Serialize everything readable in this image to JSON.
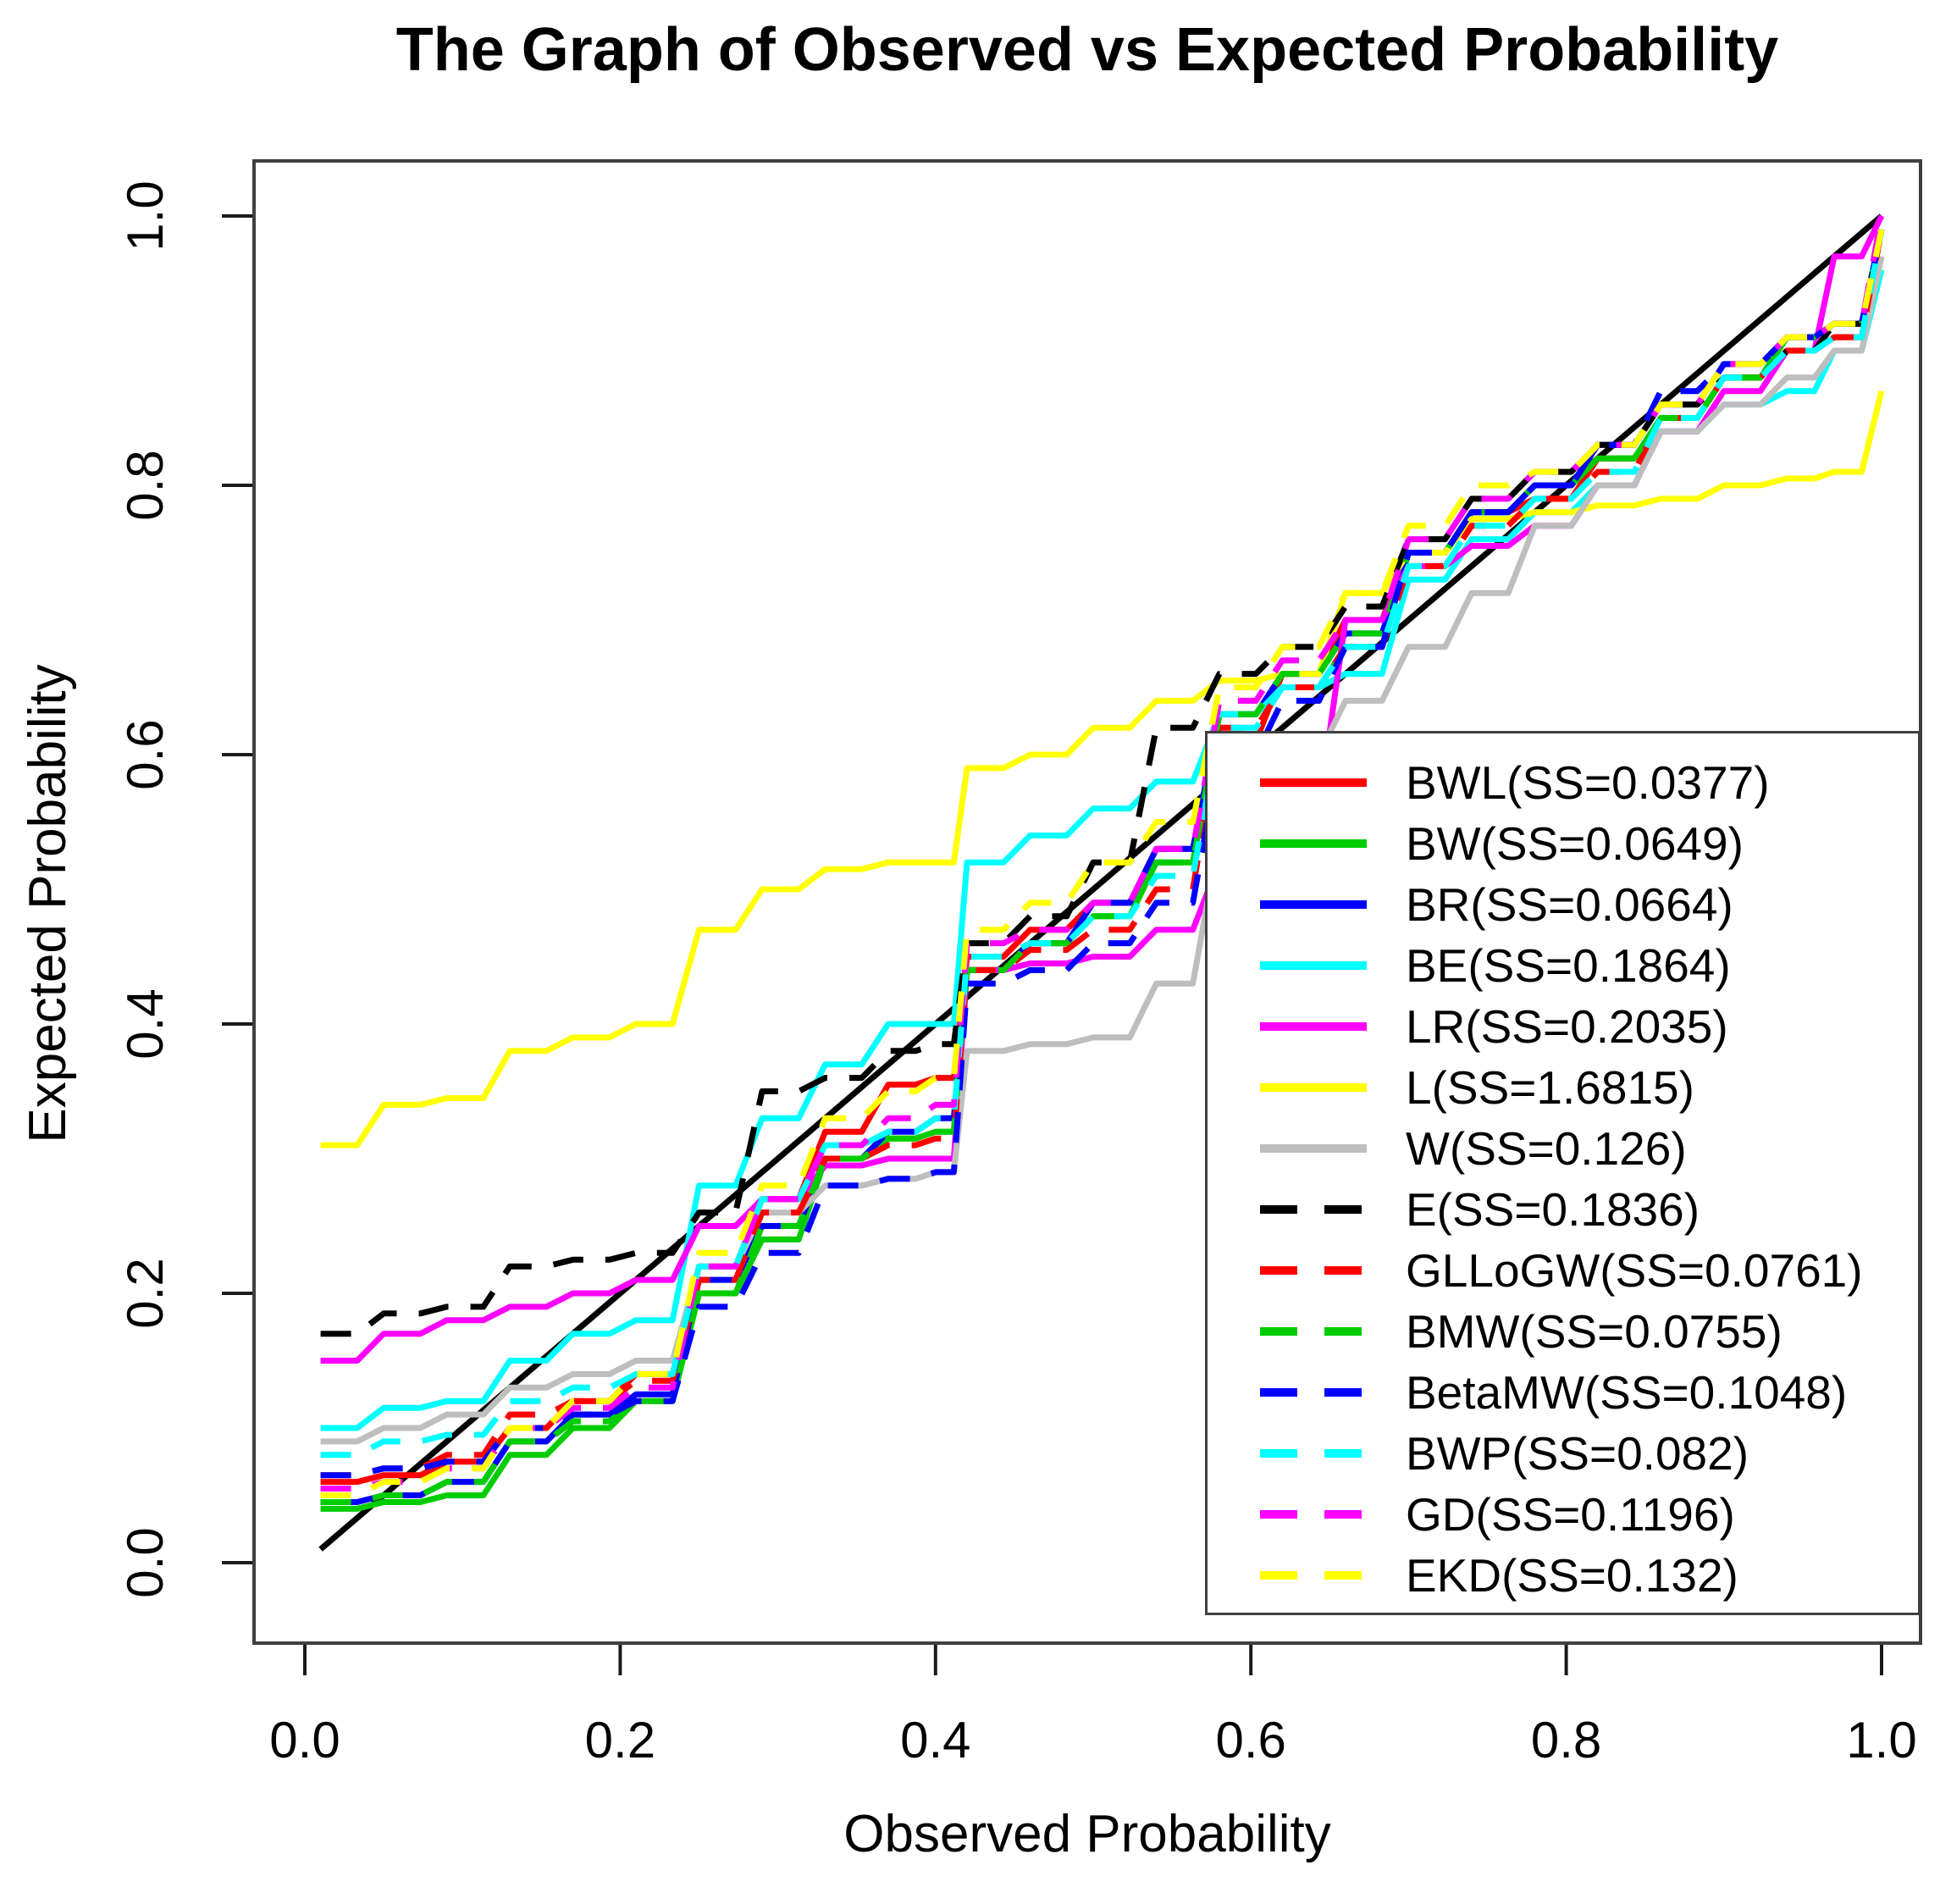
{
  "title": "The Graph of Observed vs Expected Probability",
  "chart_data": {
    "type": "line",
    "title": "The Graph of Observed vs Expected Probability",
    "xlabel": "Observed Probability",
    "ylabel": "Expected Probability",
    "xlim": [
      0,
      1
    ],
    "ylim": [
      0,
      1
    ],
    "grid": false,
    "legend_position": "bottom-right",
    "x_ticks": [
      "0.0",
      "0.2",
      "0.4",
      "0.6",
      "0.8",
      "1.0"
    ],
    "y_ticks": [
      "0.0",
      "0.2",
      "0.4",
      "0.6",
      "0.8",
      "1.0"
    ],
    "x": [
      0.01,
      0.05,
      0.09,
      0.13,
      0.17,
      0.21,
      0.25,
      0.29,
      0.33,
      0.37,
      0.4,
      0.42,
      0.46,
      0.5,
      0.54,
      0.58,
      0.62,
      0.66,
      0.7,
      0.74,
      0.78,
      0.82,
      0.86,
      0.9,
      0.94,
      0.97,
      1.0
    ],
    "series": [
      {
        "name": "reference",
        "label": "",
        "color": "#000000",
        "dashed": false,
        "step": false,
        "in_legend": false,
        "y": [
          0.01,
          0.05,
          0.09,
          0.13,
          0.17,
          0.21,
          0.25,
          0.29,
          0.33,
          0.37,
          0.4,
          0.42,
          0.46,
          0.5,
          0.54,
          0.58,
          0.62,
          0.66,
          0.7,
          0.74,
          0.78,
          0.82,
          0.86,
          0.9,
          0.94,
          0.97,
          1.0
        ]
      },
      {
        "name": "BWL",
        "label": "BWL(SS=0.0377)",
        "color": "#ff0000",
        "dashed": false,
        "step": true,
        "in_legend": true,
        "y": [
          0.06,
          0.065,
          0.075,
          0.1,
          0.12,
          0.14,
          0.22,
          0.27,
          0.32,
          0.355,
          0.36,
          0.45,
          0.47,
          0.49,
          0.53,
          0.61,
          0.66,
          0.7,
          0.75,
          0.78,
          0.79,
          0.82,
          0.85,
          0.88,
          0.9,
          0.91,
          0.99
        ]
      },
      {
        "name": "BW",
        "label": "BW(SS=0.0649)",
        "color": "#00cd00",
        "dashed": false,
        "step": true,
        "in_legend": true,
        "y": [
          0.04,
          0.045,
          0.05,
          0.08,
          0.1,
          0.12,
          0.2,
          0.24,
          0.3,
          0.315,
          0.32,
          0.44,
          0.46,
          0.48,
          0.52,
          0.63,
          0.65,
          0.68,
          0.75,
          0.78,
          0.8,
          0.82,
          0.85,
          0.88,
          0.91,
          0.92,
          0.99
        ]
      },
      {
        "name": "BR",
        "label": "BR(SS=0.0664)",
        "color": "#0000ff",
        "dashed": false,
        "step": true,
        "in_legend": true,
        "y": [
          0.045,
          0.05,
          0.06,
          0.09,
          0.11,
          0.125,
          0.21,
          0.25,
          0.3,
          0.32,
          0.33,
          0.44,
          0.46,
          0.49,
          0.53,
          0.63,
          0.66,
          0.69,
          0.75,
          0.78,
          0.8,
          0.83,
          0.86,
          0.89,
          0.91,
          0.92,
          0.99
        ]
      },
      {
        "name": "BE",
        "label": "BE(SS=0.1864)",
        "color": "#00ffff",
        "dashed": false,
        "step": true,
        "in_legend": true,
        "y": [
          0.1,
          0.115,
          0.12,
          0.15,
          0.17,
          0.18,
          0.28,
          0.33,
          0.37,
          0.4,
          0.4,
          0.52,
          0.54,
          0.56,
          0.58,
          0.63,
          0.65,
          0.66,
          0.73,
          0.76,
          0.78,
          0.8,
          0.84,
          0.86,
          0.87,
          0.9,
          0.96
        ]
      },
      {
        "name": "LR",
        "label": "LR(SS=0.2035)",
        "color": "#ff00ff",
        "dashed": false,
        "step": true,
        "in_legend": true,
        "y": [
          0.15,
          0.17,
          0.18,
          0.19,
          0.2,
          0.21,
          0.25,
          0.27,
          0.295,
          0.3,
          0.3,
          0.44,
          0.445,
          0.45,
          0.47,
          0.52,
          0.56,
          0.7,
          0.74,
          0.755,
          0.77,
          0.8,
          0.84,
          0.87,
          0.9,
          0.97,
          1.0
        ]
      },
      {
        "name": "L",
        "label": "L(SS=1.6815)",
        "color": "#ffff00",
        "dashed": false,
        "step": true,
        "in_legend": true,
        "y": [
          0.31,
          0.34,
          0.345,
          0.38,
          0.39,
          0.4,
          0.47,
          0.5,
          0.515,
          0.52,
          0.52,
          0.59,
          0.6,
          0.62,
          0.64,
          0.655,
          0.66,
          0.72,
          0.75,
          0.775,
          0.78,
          0.785,
          0.79,
          0.8,
          0.805,
          0.81,
          0.87
        ]
      },
      {
        "name": "W",
        "label": "W(SS=0.126)",
        "color": "#bebebe",
        "dashed": false,
        "step": true,
        "in_legend": true,
        "y": [
          0.09,
          0.1,
          0.11,
          0.13,
          0.14,
          0.15,
          0.22,
          0.26,
          0.28,
          0.285,
          0.29,
          0.38,
          0.385,
          0.39,
          0.43,
          0.54,
          0.6,
          0.64,
          0.68,
          0.72,
          0.77,
          0.8,
          0.84,
          0.86,
          0.88,
          0.9,
          0.97
        ]
      },
      {
        "name": "E",
        "label": "E(SS=0.1836)",
        "color": "#000000",
        "dashed": true,
        "step": true,
        "in_legend": true,
        "y": [
          0.17,
          0.185,
          0.19,
          0.22,
          0.225,
          0.23,
          0.26,
          0.35,
          0.36,
          0.38,
          0.385,
          0.46,
          0.48,
          0.52,
          0.62,
          0.66,
          0.68,
          0.71,
          0.76,
          0.79,
          0.81,
          0.83,
          0.86,
          0.88,
          0.9,
          0.92,
          0.99
        ]
      },
      {
        "name": "GLLoGW",
        "label": "GLLoGW(SS=0.0761)",
        "color": "#ff0000",
        "dashed": true,
        "step": true,
        "in_legend": true,
        "y": [
          0.065,
          0.07,
          0.08,
          0.11,
          0.12,
          0.135,
          0.21,
          0.26,
          0.3,
          0.31,
          0.315,
          0.44,
          0.455,
          0.47,
          0.5,
          0.62,
          0.65,
          0.68,
          0.74,
          0.77,
          0.79,
          0.81,
          0.85,
          0.88,
          0.9,
          0.91,
          0.99
        ]
      },
      {
        "name": "BMW",
        "label": "BMW(SS=0.0755)",
        "color": "#00cd00",
        "dashed": true,
        "step": true,
        "in_legend": true,
        "y": [
          0.045,
          0.05,
          0.06,
          0.09,
          0.105,
          0.12,
          0.2,
          0.25,
          0.3,
          0.315,
          0.32,
          0.44,
          0.46,
          0.48,
          0.52,
          0.63,
          0.66,
          0.69,
          0.75,
          0.78,
          0.8,
          0.82,
          0.85,
          0.88,
          0.91,
          0.92,
          0.99
        ]
      },
      {
        "name": "BetaMW",
        "label": "BetaMW(SS=0.1048)",
        "color": "#0000ff",
        "dashed": true,
        "step": true,
        "in_legend": true,
        "y": [
          0.065,
          0.07,
          0.075,
          0.1,
          0.11,
          0.12,
          0.19,
          0.23,
          0.28,
          0.285,
          0.29,
          0.43,
          0.44,
          0.46,
          0.49,
          0.6,
          0.64,
          0.68,
          0.75,
          0.78,
          0.8,
          0.83,
          0.87,
          0.89,
          0.91,
          0.92,
          0.99
        ]
      },
      {
        "name": "BWP",
        "label": "BWP(SS=0.082)",
        "color": "#00ffff",
        "dashed": true,
        "step": true,
        "in_legend": true,
        "y": [
          0.08,
          0.09,
          0.095,
          0.12,
          0.13,
          0.14,
          0.22,
          0.27,
          0.31,
          0.32,
          0.33,
          0.45,
          0.46,
          0.48,
          0.51,
          0.62,
          0.65,
          0.68,
          0.74,
          0.77,
          0.79,
          0.81,
          0.85,
          0.88,
          0.9,
          0.91,
          0.99
        ]
      },
      {
        "name": "GD",
        "label": "GD(SS=0.1196)",
        "color": "#ff00ff",
        "dashed": true,
        "step": true,
        "in_legend": true,
        "y": [
          0.055,
          0.06,
          0.07,
          0.1,
          0.115,
          0.13,
          0.22,
          0.27,
          0.31,
          0.33,
          0.34,
          0.46,
          0.47,
          0.49,
          0.53,
          0.64,
          0.67,
          0.7,
          0.76,
          0.79,
          0.81,
          0.83,
          0.86,
          0.89,
          0.91,
          0.92,
          1.0
        ]
      },
      {
        "name": "EKD",
        "label": "EKD(SS=0.132)",
        "color": "#ffff00",
        "dashed": true,
        "step": true,
        "in_legend": true,
        "y": [
          0.05,
          0.06,
          0.07,
          0.1,
          0.12,
          0.14,
          0.23,
          0.28,
          0.33,
          0.35,
          0.36,
          0.47,
          0.49,
          0.52,
          0.55,
          0.65,
          0.68,
          0.72,
          0.77,
          0.8,
          0.81,
          0.83,
          0.86,
          0.89,
          0.91,
          0.92,
          0.99
        ]
      }
    ],
    "style": {
      "axis_color": "#1a1a1a",
      "box_color": "#3f3f3f",
      "legend_border_color": "#3f3f3f",
      "line_width": 7,
      "dash_pattern": "36 26"
    }
  }
}
